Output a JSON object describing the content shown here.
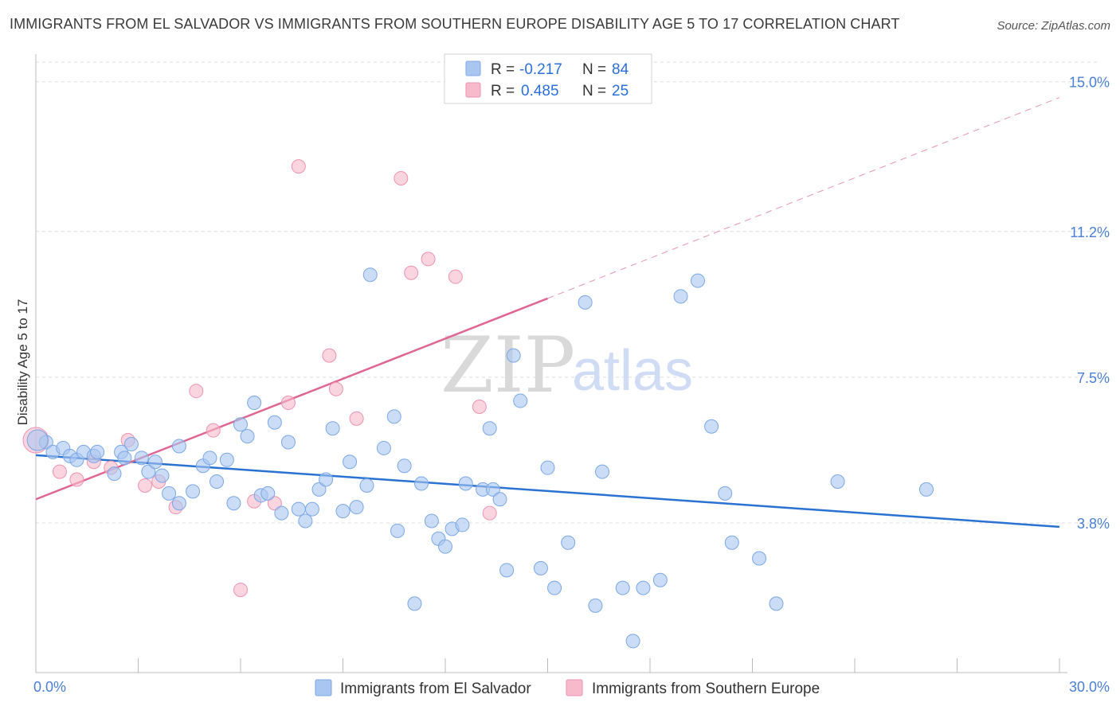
{
  "title": "IMMIGRANTS FROM EL SALVADOR VS IMMIGRANTS FROM SOUTHERN EUROPE DISABILITY AGE 5 TO 17 CORRELATION CHART",
  "source": "Source: ZipAtlas.com",
  "watermark": {
    "zip": "ZIP",
    "atlas": "atlas"
  },
  "legend": {
    "rows": [
      {
        "r_label": "R =",
        "r_value": "-0.217",
        "n_label": "N =",
        "n_value": "84"
      },
      {
        "r_label": "R =",
        "r_value": "0.485",
        "n_label": "N =",
        "n_value": "25"
      }
    ]
  },
  "colors": {
    "blue_fill": "#a9c6f0",
    "blue_stroke": "#7aa7e6",
    "blue_line": "#2a72d2",
    "pink_fill": "#f7b9cc",
    "pink_stroke": "#ee92b0",
    "pink_line": "#e06592"
  },
  "chart_data": {
    "type": "scatter",
    "title": "IMMIGRANTS FROM EL SALVADOR VS IMMIGRANTS FROM SOUTHERN EUROPE DISABILITY AGE 5 TO 17 CORRELATION CHART",
    "xlabel": "",
    "ylabel": "Disability Age 5 to 17",
    "xlim": [
      0,
      30
    ],
    "ylim": [
      0,
      15.5
    ],
    "x_tick_labels": [
      "0.0%",
      "30.0%"
    ],
    "y_ticks": [
      3.8,
      7.5,
      11.2,
      15.0
    ],
    "y_tick_labels": [
      "3.8%",
      "7.5%",
      "11.2%",
      "15.0%"
    ],
    "grid": true,
    "legend_position": "top-center",
    "series": [
      {
        "name": "Immigrants from El Salvador",
        "color": "#a9c6f0",
        "trend": {
          "x0": 0,
          "y0": 5.52,
          "x1": 30,
          "y1": 3.7
        },
        "points": [
          [
            0.3,
            5.85
          ],
          [
            0.5,
            5.6
          ],
          [
            0.8,
            5.7
          ],
          [
            1.0,
            5.5
          ],
          [
            1.2,
            5.4
          ],
          [
            1.4,
            5.6
          ],
          [
            1.7,
            5.5
          ],
          [
            1.8,
            5.6
          ],
          [
            2.3,
            5.05
          ],
          [
            2.5,
            5.6
          ],
          [
            2.6,
            5.45
          ],
          [
            2.8,
            5.8
          ],
          [
            3.1,
            5.45
          ],
          [
            3.3,
            5.1
          ],
          [
            3.5,
            5.35
          ],
          [
            3.7,
            5.0
          ],
          [
            3.9,
            4.55
          ],
          [
            4.2,
            4.3
          ],
          [
            4.2,
            5.75
          ],
          [
            4.6,
            4.6
          ],
          [
            4.9,
            5.25
          ],
          [
            5.1,
            5.45
          ],
          [
            5.3,
            4.85
          ],
          [
            5.6,
            5.4
          ],
          [
            5.8,
            4.3
          ],
          [
            6.0,
            6.3
          ],
          [
            6.2,
            6.0
          ],
          [
            6.4,
            6.85
          ],
          [
            6.6,
            4.5
          ],
          [
            6.8,
            4.55
          ],
          [
            7.0,
            6.35
          ],
          [
            7.2,
            4.05
          ],
          [
            7.4,
            5.85
          ],
          [
            7.7,
            4.15
          ],
          [
            7.9,
            3.85
          ],
          [
            8.1,
            4.15
          ],
          [
            8.3,
            4.65
          ],
          [
            8.5,
            4.9
          ],
          [
            8.7,
            6.2
          ],
          [
            9.0,
            4.1
          ],
          [
            9.2,
            5.35
          ],
          [
            9.4,
            4.2
          ],
          [
            9.7,
            4.75
          ],
          [
            9.8,
            10.1
          ],
          [
            10.2,
            5.7
          ],
          [
            10.5,
            6.5
          ],
          [
            10.6,
            3.6
          ],
          [
            10.8,
            5.25
          ],
          [
            11.1,
            1.75
          ],
          [
            11.3,
            4.8
          ],
          [
            11.6,
            3.85
          ],
          [
            11.8,
            3.4
          ],
          [
            12.0,
            3.2
          ],
          [
            12.2,
            3.65
          ],
          [
            12.5,
            3.75
          ],
          [
            12.6,
            4.8
          ],
          [
            13.1,
            4.65
          ],
          [
            13.3,
            6.2
          ],
          [
            13.4,
            4.65
          ],
          [
            13.6,
            4.4
          ],
          [
            13.8,
            2.6
          ],
          [
            14.0,
            8.05
          ],
          [
            14.2,
            6.9
          ],
          [
            14.8,
            2.65
          ],
          [
            15.0,
            5.2
          ],
          [
            15.2,
            2.15
          ],
          [
            15.6,
            3.3
          ],
          [
            16.1,
            9.4
          ],
          [
            16.4,
            1.7
          ],
          [
            16.6,
            5.1
          ],
          [
            17.2,
            2.15
          ],
          [
            17.5,
            0.8
          ],
          [
            17.8,
            2.15
          ],
          [
            18.3,
            2.35
          ],
          [
            18.9,
            9.55
          ],
          [
            19.4,
            9.95
          ],
          [
            19.8,
            6.25
          ],
          [
            20.2,
            4.55
          ],
          [
            20.4,
            3.3
          ],
          [
            21.2,
            2.9
          ],
          [
            21.7,
            1.75
          ],
          [
            23.5,
            4.85
          ],
          [
            26.1,
            4.65
          ],
          [
            0.05,
            5.9
          ]
        ]
      },
      {
        "name": "Immigrants from Southern Europe",
        "color": "#f7b9cc",
        "trend": {
          "x0": 0,
          "y0": 4.4,
          "x1": 15,
          "y1": 9.5,
          "dashed_to": {
            "x": 30,
            "y": 14.6
          }
        },
        "points": [
          [
            0.0,
            5.9
          ],
          [
            0.7,
            5.1
          ],
          [
            1.2,
            4.9
          ],
          [
            1.7,
            5.35
          ],
          [
            2.2,
            5.2
          ],
          [
            2.7,
            5.9
          ],
          [
            3.2,
            4.75
          ],
          [
            3.6,
            4.85
          ],
          [
            4.1,
            4.2
          ],
          [
            4.7,
            7.15
          ],
          [
            5.2,
            6.15
          ],
          [
            6.0,
            2.1
          ],
          [
            6.4,
            4.35
          ],
          [
            7.0,
            4.3
          ],
          [
            7.4,
            6.85
          ],
          [
            7.7,
            12.85
          ],
          [
            8.6,
            8.05
          ],
          [
            8.8,
            7.2
          ],
          [
            9.4,
            6.45
          ],
          [
            10.7,
            12.55
          ],
          [
            11.0,
            10.15
          ],
          [
            11.5,
            10.5
          ],
          [
            12.3,
            10.05
          ],
          [
            13.0,
            6.75
          ],
          [
            13.3,
            4.05
          ]
        ]
      }
    ]
  },
  "bottom_legend": {
    "items": [
      "Immigrants from El Salvador",
      "Immigrants from Southern Europe"
    ]
  }
}
